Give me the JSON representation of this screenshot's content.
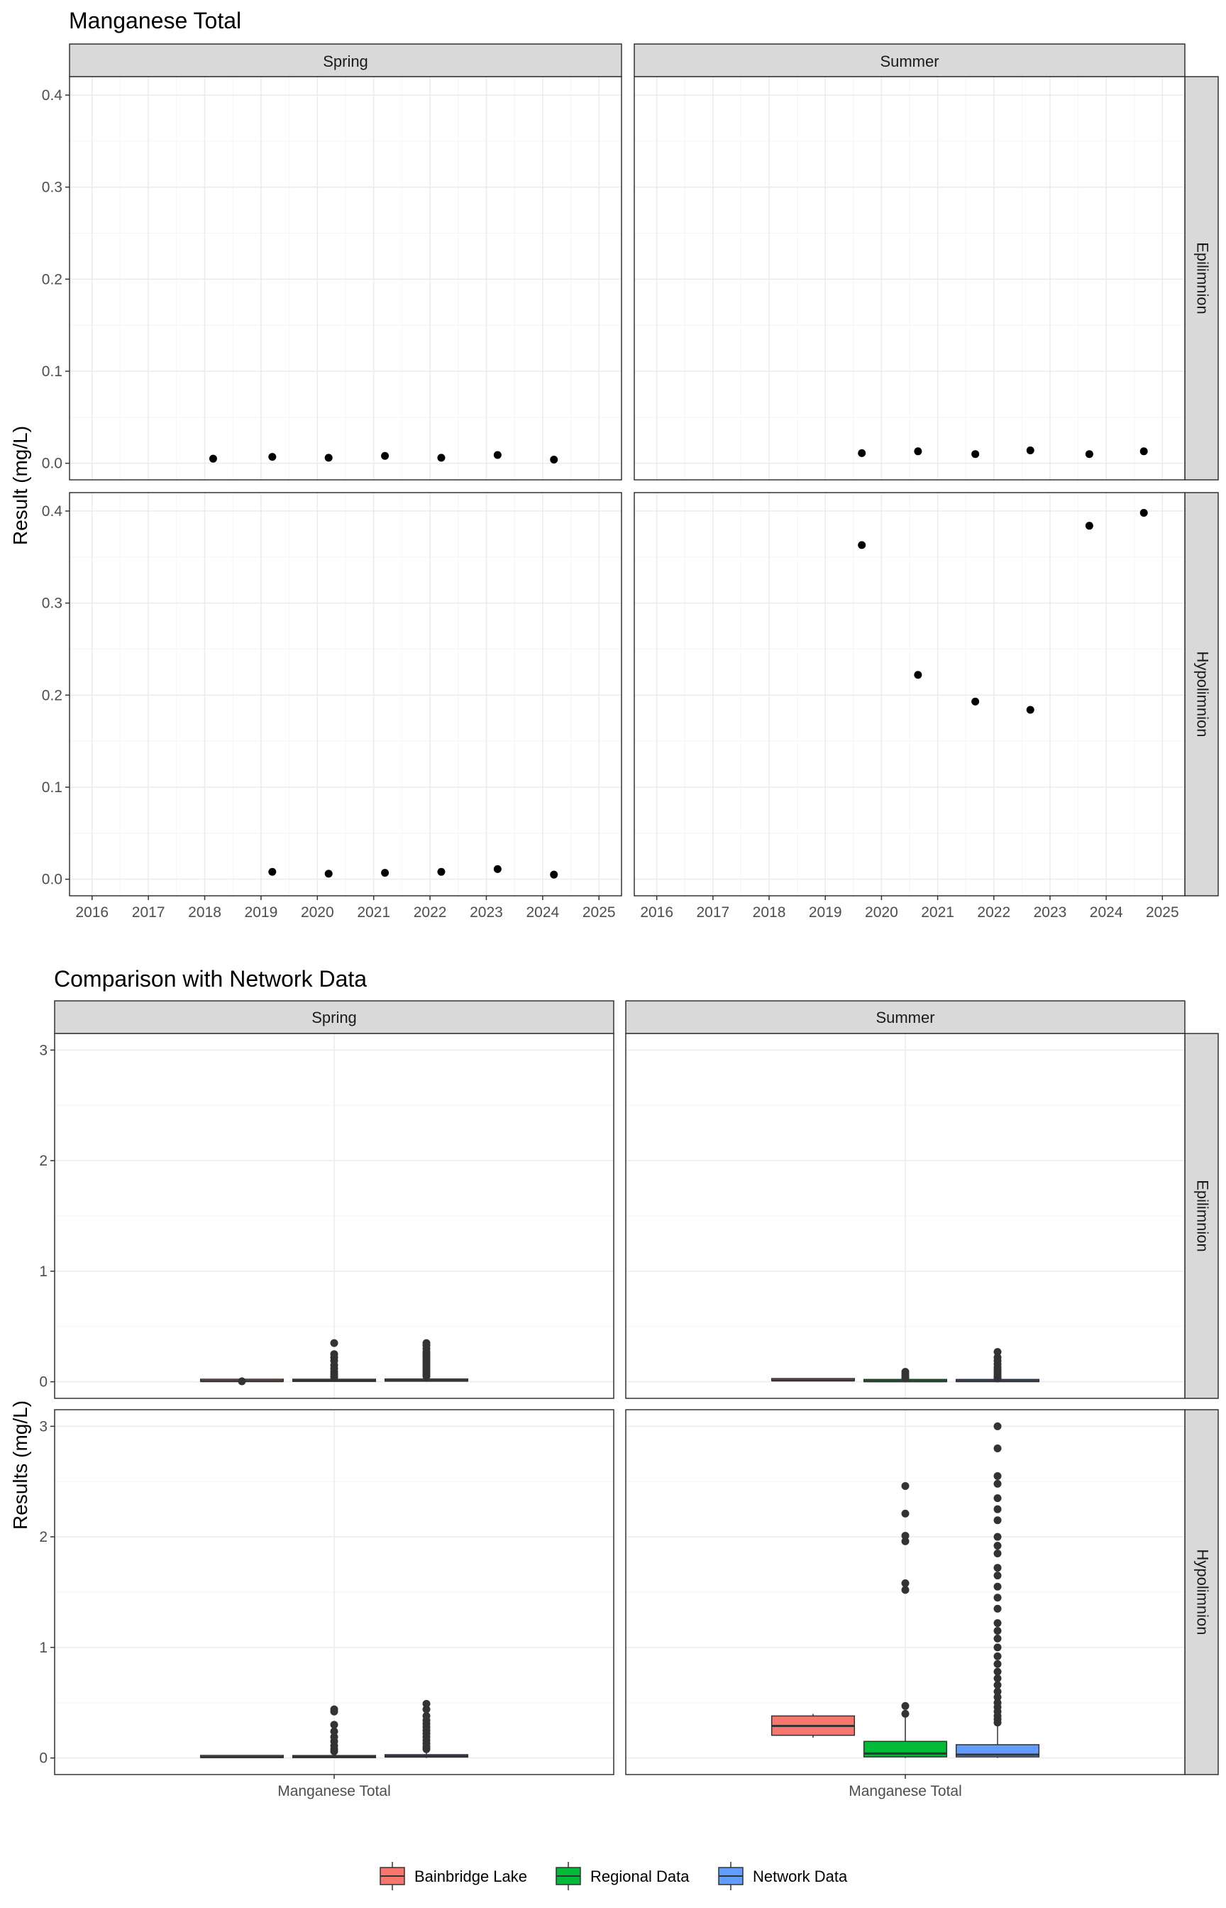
{
  "chart_data": [
    {
      "type": "scatter",
      "title": "Manganese Total",
      "ylabel": "Result (mg/L)",
      "xlabel": "",
      "x_ticks": [
        "2016",
        "2017",
        "2018",
        "2019",
        "2020",
        "2021",
        "2022",
        "2023",
        "2024",
        "2025"
      ],
      "xlim": [
        2015.6,
        2025.4
      ],
      "ylim": [
        -0.018,
        0.42
      ],
      "y_ticks": [
        "0.0",
        "0.1",
        "0.2",
        "0.3",
        "0.4"
      ],
      "grid": true,
      "col_facets": [
        "Spring",
        "Summer"
      ],
      "row_facets": [
        "Epilimnion",
        "Hypolimnion"
      ],
      "panels": [
        {
          "season": "Spring",
          "layer": "Epilimnion",
          "points": [
            [
              2018.15,
              0.005
            ],
            [
              2019.2,
              0.007
            ],
            [
              2020.2,
              0.006
            ],
            [
              2021.2,
              0.008
            ],
            [
              2022.2,
              0.006
            ],
            [
              2023.2,
              0.009
            ],
            [
              2024.2,
              0.004
            ]
          ]
        },
        {
          "season": "Summer",
          "layer": "Epilimnion",
          "points": [
            [
              2019.65,
              0.011
            ],
            [
              2020.65,
              0.013
            ],
            [
              2021.67,
              0.01
            ],
            [
              2022.65,
              0.014
            ],
            [
              2023.7,
              0.01
            ],
            [
              2024.67,
              0.013
            ]
          ]
        },
        {
          "season": "Spring",
          "layer": "Hypolimnion",
          "points": [
            [
              2019.2,
              0.008
            ],
            [
              2020.2,
              0.006
            ],
            [
              2021.2,
              0.007
            ],
            [
              2022.2,
              0.008
            ],
            [
              2023.2,
              0.011
            ],
            [
              2024.2,
              0.005
            ]
          ]
        },
        {
          "season": "Summer",
          "layer": "Hypolimnion",
          "points": [
            [
              2019.65,
              0.363
            ],
            [
              2020.65,
              0.222
            ],
            [
              2021.67,
              0.193
            ],
            [
              2022.65,
              0.184
            ],
            [
              2023.7,
              0.384
            ],
            [
              2024.67,
              0.398
            ]
          ]
        }
      ]
    },
    {
      "type": "box",
      "title": "Comparison with Network Data",
      "ylabel": "Results (mg/L)",
      "xlabel": "",
      "categories": [
        "Manganese Total"
      ],
      "ylim": [
        -0.15,
        3.15
      ],
      "y_ticks": [
        "0",
        "1",
        "2",
        "3"
      ],
      "grid": true,
      "col_facets": [
        "Spring",
        "Summer"
      ],
      "row_facets": [
        "Epilimnion",
        "Hypolimnion"
      ],
      "legend": {
        "position": "bottom",
        "entries": [
          {
            "name": "Bainbridge Lake",
            "color": "#F8766D"
          },
          {
            "name": "Regional Data",
            "color": "#00BA38"
          },
          {
            "name": "Network Data",
            "color": "#619CFF"
          }
        ]
      },
      "panels": [
        {
          "season": "Spring",
          "layer": "Epilimnion",
          "boxes": [
            {
              "series": "Bainbridge Lake",
              "q1": 0.004,
              "median": 0.006,
              "q3": 0.008,
              "whisker_low": 0.003,
              "whisker_high": 0.01,
              "outliers": [
                0.004
              ]
            },
            {
              "series": "Regional Data",
              "q1": 0.004,
              "median": 0.008,
              "q3": 0.014,
              "whisker_low": 0.0,
              "whisker_high": 0.03,
              "outliers": [
                0.35,
                0.25,
                0.22,
                0.19,
                0.15,
                0.12,
                0.09,
                0.07,
                0.05,
                0.04
              ]
            },
            {
              "series": "Network Data",
              "q1": 0.006,
              "median": 0.01,
              "q3": 0.02,
              "whisker_low": 0.0,
              "whisker_high": 0.04,
              "outliers": [
                0.35,
                0.33,
                0.3,
                0.27,
                0.25,
                0.23,
                0.21,
                0.19,
                0.17,
                0.15,
                0.13,
                0.11,
                0.09,
                0.07,
                0.05
              ]
            }
          ]
        },
        {
          "season": "Summer",
          "layer": "Epilimnion",
          "boxes": [
            {
              "series": "Bainbridge Lake",
              "q1": 0.01,
              "median": 0.012,
              "q3": 0.014,
              "whisker_low": 0.009,
              "whisker_high": 0.016,
              "outliers": []
            },
            {
              "series": "Regional Data",
              "q1": 0.002,
              "median": 0.005,
              "q3": 0.01,
              "whisker_low": 0.0,
              "whisker_high": 0.02,
              "outliers": [
                0.09,
                0.07,
                0.05,
                0.04,
                0.03
              ]
            },
            {
              "series": "Network Data",
              "q1": 0.002,
              "median": 0.006,
              "q3": 0.012,
              "whisker_low": 0.0,
              "whisker_high": 0.025,
              "outliers": [
                0.27,
                0.22,
                0.19,
                0.16,
                0.13,
                0.11,
                0.09,
                0.07,
                0.05,
                0.04,
                0.03
              ]
            }
          ]
        },
        {
          "season": "Spring",
          "layer": "Hypolimnion",
          "boxes": [
            {
              "series": "Bainbridge Lake",
              "q1": 0.004,
              "median": 0.007,
              "q3": 0.009,
              "whisker_low": 0.003,
              "whisker_high": 0.011,
              "outliers": []
            },
            {
              "series": "Regional Data",
              "q1": 0.003,
              "median": 0.008,
              "q3": 0.018,
              "whisker_low": 0.0,
              "whisker_high": 0.04,
              "outliers": [
                0.44,
                0.42,
                0.3,
                0.24,
                0.19,
                0.15,
                0.11,
                0.08,
                0.06
              ]
            },
            {
              "series": "Network Data",
              "q1": 0.008,
              "median": 0.015,
              "q3": 0.03,
              "whisker_low": 0.0,
              "whisker_high": 0.06,
              "outliers": [
                0.49,
                0.44,
                0.38,
                0.34,
                0.31,
                0.28,
                0.25,
                0.22,
                0.19,
                0.16,
                0.13,
                0.1,
                0.08
              ]
            }
          ]
        },
        {
          "season": "Summer",
          "layer": "Hypolimnion",
          "boxes": [
            {
              "series": "Bainbridge Lake",
              "q1": 0.205,
              "median": 0.29,
              "q3": 0.38,
              "whisker_low": 0.184,
              "whisker_high": 0.398,
              "outliers": []
            },
            {
              "series": "Regional Data",
              "q1": 0.01,
              "median": 0.04,
              "q3": 0.15,
              "whisker_low": 0.0,
              "whisker_high": 0.38,
              "outliers": [
                2.46,
                2.21,
                2.01,
                1.96,
                1.58,
                1.52,
                0.47,
                0.4
              ]
            },
            {
              "series": "Network Data",
              "q1": 0.01,
              "median": 0.03,
              "q3": 0.12,
              "whisker_low": 0.0,
              "whisker_high": 0.3,
              "outliers": [
                3.0,
                2.8,
                2.55,
                2.48,
                2.35,
                2.25,
                2.15,
                2.0,
                1.92,
                1.85,
                1.72,
                1.65,
                1.55,
                1.45,
                1.35,
                1.22,
                1.15,
                1.08,
                1.0,
                0.92,
                0.85,
                0.78,
                0.72,
                0.66,
                0.6,
                0.55,
                0.5,
                0.46,
                0.42,
                0.38,
                0.35,
                0.32
              ]
            }
          ]
        }
      ]
    }
  ]
}
